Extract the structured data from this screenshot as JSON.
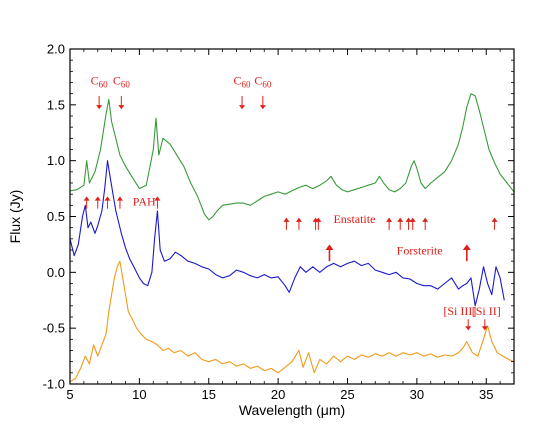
{
  "chart_data": {
    "type": "line",
    "xlabel": "Wavelength (μm)",
    "ylabel": "Flux (Jy)",
    "xlim": [
      5,
      37
    ],
    "ylim": [
      -1.0,
      2.0
    ],
    "x_ticks": [
      5,
      10,
      15,
      20,
      25,
      30,
      35
    ],
    "y_ticks": [
      -1.0,
      -0.5,
      0.0,
      0.5,
      1.0,
      1.5,
      2.0
    ],
    "x_tick_labels": [
      "5",
      "10",
      "15",
      "20",
      "25",
      "30",
      "35"
    ],
    "y_tick_labels": [
      "-1.0",
      "-0.5",
      "0.0",
      "0.5",
      "1.0",
      "1.5",
      "2.0"
    ],
    "grid": false,
    "series": [
      {
        "color": "#3a9a3a",
        "x": [
          5.0,
          5.5,
          6.0,
          6.2,
          6.4,
          6.8,
          7.2,
          7.6,
          7.8,
          8.0,
          8.3,
          8.6,
          9.0,
          9.5,
          10.0,
          10.5,
          11.0,
          11.2,
          11.4,
          11.7,
          12.2,
          12.7,
          13.2,
          13.7,
          14.2,
          14.7,
          15.0,
          15.3,
          15.6,
          16.0,
          16.5,
          17.0,
          17.5,
          18.0,
          18.5,
          19.0,
          19.5,
          20.0,
          20.5,
          21.0,
          21.5,
          22.0,
          22.5,
          23.0,
          23.5,
          23.8,
          24.2,
          24.6,
          25.0,
          25.5,
          26.0,
          26.5,
          27.0,
          27.3,
          27.6,
          28.0,
          28.4,
          28.8,
          29.2,
          29.6,
          29.8,
          30.0,
          30.3,
          30.6,
          31.0,
          31.5,
          32.0,
          32.5,
          33.0,
          33.3,
          33.6,
          33.9,
          34.2,
          34.5,
          34.8,
          35.2,
          35.6,
          36.0,
          36.5,
          37.0
        ],
        "y": [
          0.73,
          0.74,
          0.78,
          1.0,
          0.8,
          0.9,
          1.1,
          1.42,
          1.55,
          1.35,
          1.2,
          1.05,
          0.95,
          0.85,
          0.75,
          0.78,
          1.1,
          1.38,
          1.05,
          1.2,
          1.15,
          1.05,
          0.95,
          0.8,
          0.68,
          0.52,
          0.47,
          0.5,
          0.55,
          0.6,
          0.61,
          0.62,
          0.62,
          0.6,
          0.64,
          0.68,
          0.7,
          0.72,
          0.7,
          0.73,
          0.76,
          0.78,
          0.75,
          0.78,
          0.82,
          0.86,
          0.78,
          0.74,
          0.72,
          0.74,
          0.76,
          0.78,
          0.8,
          0.86,
          0.8,
          0.74,
          0.72,
          0.75,
          0.8,
          0.95,
          1.0,
          0.93,
          0.8,
          0.75,
          0.8,
          0.85,
          0.9,
          1.0,
          1.15,
          1.3,
          1.48,
          1.6,
          1.58,
          1.45,
          1.3,
          1.1,
          0.98,
          0.88,
          0.8,
          0.72
        ]
      },
      {
        "color": "#1a1acc",
        "x": [
          5.0,
          5.3,
          5.6,
          5.9,
          6.1,
          6.3,
          6.5,
          6.8,
          7.0,
          7.3,
          7.5,
          7.7,
          7.9,
          8.1,
          8.3,
          8.5,
          8.7,
          9.0,
          9.3,
          9.6,
          10.0,
          10.3,
          10.6,
          10.9,
          11.1,
          11.3,
          11.5,
          11.8,
          12.2,
          12.6,
          13.0,
          13.5,
          14.0,
          14.5,
          15.0,
          15.5,
          16.0,
          16.5,
          17.0,
          17.5,
          18.0,
          18.5,
          19.0,
          19.5,
          20.0,
          20.5,
          20.8,
          21.2,
          21.6,
          22.0,
          22.5,
          23.0,
          23.5,
          24.0,
          24.5,
          25.0,
          25.5,
          26.0,
          26.5,
          27.0,
          27.5,
          28.0,
          28.5,
          29.0,
          29.5,
          30.0,
          30.5,
          31.0,
          31.5,
          32.0,
          32.5,
          33.0,
          33.3,
          33.6,
          33.9,
          34.2,
          34.5,
          34.8,
          35.1,
          35.4,
          35.7,
          36.0,
          36.3
        ],
        "y": [
          0.3,
          0.15,
          0.25,
          0.5,
          0.6,
          0.4,
          0.45,
          0.35,
          0.42,
          0.55,
          0.75,
          1.0,
          0.85,
          0.7,
          0.55,
          0.45,
          0.35,
          0.22,
          0.12,
          0.05,
          -0.05,
          -0.1,
          -0.12,
          0.0,
          0.3,
          0.55,
          0.2,
          0.1,
          0.12,
          0.18,
          0.15,
          0.1,
          0.08,
          0.05,
          0.03,
          -0.02,
          -0.05,
          -0.03,
          0.02,
          0.0,
          -0.03,
          -0.05,
          -0.02,
          -0.05,
          -0.04,
          -0.12,
          -0.18,
          -0.05,
          0.05,
          0.0,
          0.05,
          0.0,
          0.05,
          0.08,
          0.05,
          0.08,
          0.1,
          0.06,
          0.08,
          0.02,
          0.0,
          -0.02,
          0.0,
          -0.05,
          -0.06,
          -0.1,
          -0.12,
          -0.12,
          -0.15,
          -0.1,
          -0.05,
          -0.15,
          -0.12,
          -0.1,
          -0.05,
          -0.3,
          -0.15,
          0.05,
          -0.1,
          -0.2,
          0.05,
          -0.05,
          -0.25
        ]
      },
      {
        "color": "#f29a1a",
        "x": [
          5.0,
          5.4,
          5.8,
          6.1,
          6.4,
          6.7,
          7.0,
          7.3,
          7.6,
          7.8,
          8.0,
          8.2,
          8.4,
          8.6,
          8.8,
          9.0,
          9.2,
          9.5,
          9.8,
          10.1,
          10.5,
          10.9,
          11.3,
          11.7,
          12.1,
          12.5,
          13.0,
          13.5,
          14.0,
          14.5,
          15.0,
          15.5,
          16.0,
          16.5,
          17.0,
          17.5,
          18.0,
          18.5,
          19.0,
          19.5,
          20.0,
          20.5,
          21.0,
          21.5,
          21.8,
          22.2,
          22.6,
          23.0,
          23.5,
          24.0,
          24.5,
          25.0,
          25.5,
          26.0,
          26.5,
          27.0,
          27.5,
          28.0,
          28.5,
          29.0,
          29.5,
          30.0,
          30.5,
          31.0,
          31.5,
          32.0,
          32.5,
          33.0,
          33.3,
          33.6,
          34.0,
          34.4,
          34.8,
          35.1,
          35.4,
          35.8,
          36.2,
          36.6,
          37.0
        ],
        "y": [
          -0.98,
          -0.95,
          -0.85,
          -0.75,
          -0.82,
          -0.65,
          -0.75,
          -0.65,
          -0.55,
          -0.35,
          -0.2,
          -0.05,
          0.05,
          0.1,
          -0.05,
          -0.2,
          -0.35,
          -0.42,
          -0.5,
          -0.55,
          -0.6,
          -0.62,
          -0.65,
          -0.7,
          -0.68,
          -0.72,
          -0.7,
          -0.75,
          -0.72,
          -0.78,
          -0.8,
          -0.78,
          -0.82,
          -0.8,
          -0.84,
          -0.82,
          -0.86,
          -0.84,
          -0.88,
          -0.86,
          -0.9,
          -0.85,
          -0.8,
          -0.7,
          -0.85,
          -0.72,
          -0.9,
          -0.78,
          -0.82,
          -0.75,
          -0.8,
          -0.75,
          -0.78,
          -0.74,
          -0.76,
          -0.73,
          -0.75,
          -0.72,
          -0.75,
          -0.72,
          -0.74,
          -0.72,
          -0.75,
          -0.73,
          -0.76,
          -0.74,
          -0.75,
          -0.72,
          -0.68,
          -0.62,
          -0.72,
          -0.75,
          -0.6,
          -0.48,
          -0.62,
          -0.72,
          -0.75,
          -0.78,
          -0.8
        ]
      }
    ],
    "annotations": {
      "c60": [
        {
          "base": "C",
          "sub": "60",
          "x": 7.1,
          "text_y": 1.68,
          "arrow_from": 1.58,
          "arrow_to": 1.46
        },
        {
          "base": "C",
          "sub": "60",
          "x": 8.7,
          "text_y": 1.68,
          "arrow_from": 1.58,
          "arrow_to": 1.46
        },
        {
          "base": "C",
          "sub": "60",
          "x": 17.4,
          "text_y": 1.68,
          "arrow_from": 1.58,
          "arrow_to": 1.46
        },
        {
          "base": "C",
          "sub": "60",
          "x": 18.9,
          "text_y": 1.68,
          "arrow_from": 1.58,
          "arrow_to": 1.46
        }
      ],
      "labels": [
        {
          "text": "PAH",
          "x": 10.35,
          "y": 0.6
        },
        {
          "text": "Enstatite",
          "x": 25.5,
          "y": 0.44
        },
        {
          "text": "Forsterite",
          "x": 30.2,
          "y": 0.16
        },
        {
          "text": "[Si III]",
          "x": 33.1,
          "y": -0.38
        },
        {
          "text": "[Si II]",
          "x": 35.0,
          "y": -0.38
        }
      ],
      "up_arrows_pah": [
        6.2,
        7.0,
        7.7,
        8.6,
        11.3
      ],
      "up_arrows_enstatite": [
        20.6,
        21.5,
        22.7,
        22.9,
        28.0,
        28.8,
        29.4,
        29.7,
        30.6,
        35.6
      ],
      "up_arrows_forsterite": [
        23.7,
        33.6
      ],
      "down_arrows_si": [
        33.7,
        34.9
      ]
    }
  }
}
